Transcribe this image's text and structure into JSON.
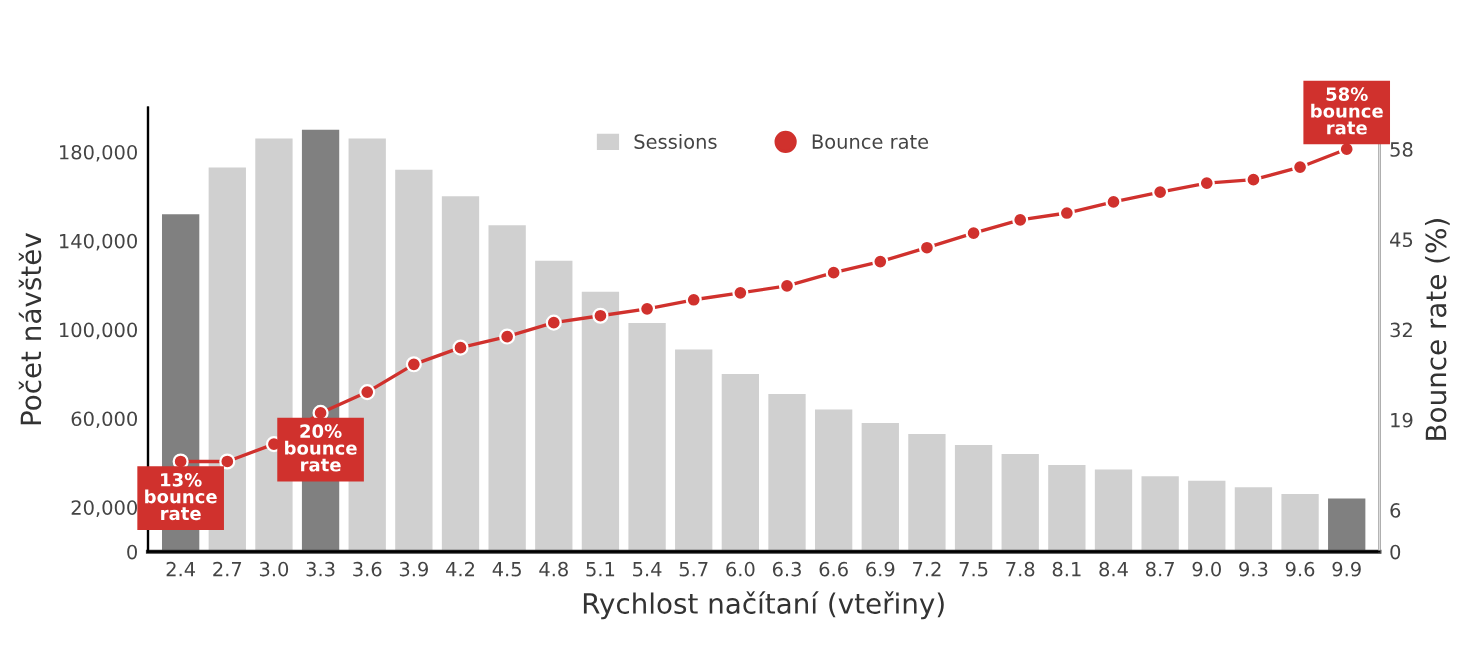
{
  "chart_data": {
    "type": "bar",
    "xlabel": "Rychlost načítaní (vteřiny)",
    "ylabel": "Počet návštěv",
    "y2label": "Bounce rate (%)",
    "categories": [
      "2.4",
      "2.7",
      "3.0",
      "3.3",
      "3.6",
      "3.9",
      "4.2",
      "4.5",
      "4.8",
      "5.1",
      "5.4",
      "5.7",
      "6.0",
      "6.3",
      "6.6",
      "6.9",
      "7.2",
      "7.5",
      "7.8",
      "8.1",
      "8.4",
      "8.7",
      "9.0",
      "9.3",
      "9.6",
      "9.9"
    ],
    "series": [
      {
        "name": "Sessions",
        "type": "bar",
        "color": "#d0d0d0",
        "colors": [
          "#808080",
          "#d0d0d0",
          "#d0d0d0",
          "#808080",
          "#d0d0d0",
          "#d0d0d0",
          "#d0d0d0",
          "#d0d0d0",
          "#d0d0d0",
          "#d0d0d0",
          "#d0d0d0",
          "#d0d0d0",
          "#d0d0d0",
          "#d0d0d0",
          "#d0d0d0",
          "#d0d0d0",
          "#d0d0d0",
          "#d0d0d0",
          "#d0d0d0",
          "#d0d0d0",
          "#d0d0d0",
          "#d0d0d0",
          "#d0d0d0",
          "#d0d0d0",
          "#d0d0d0",
          "#808080"
        ],
        "values": [
          152000,
          173000,
          186000,
          190000,
          186000,
          172000,
          160000,
          147000,
          131000,
          117000,
          103000,
          91000,
          80000,
          71000,
          64000,
          58000,
          53000,
          48000,
          44000,
          39000,
          37000,
          34000,
          32000,
          29000,
          26000,
          24000
        ]
      },
      {
        "name": "Bounce rate",
        "type": "line",
        "axis": "y2",
        "color": "#d0312d",
        "marker": "circle",
        "values": [
          13,
          13,
          15.5,
          20,
          23,
          27,
          29.4,
          31,
          33,
          34,
          35,
          36.3,
          37.3,
          38.3,
          40.2,
          41.8,
          43.8,
          45.9,
          47.8,
          48.8,
          50.4,
          51.8,
          53.1,
          53.6,
          55.4,
          58
        ]
      }
    ],
    "ylim": [
      0,
      200000
    ],
    "yticks": [
      0,
      {
        "value": 20000,
        "label": "20,000"
      },
      {
        "value": 60000,
        "label": "60,000"
      },
      {
        "value": 100000,
        "label": "100,000"
      },
      {
        "value": 140000,
        "label": "140,000"
      },
      {
        "value": 180000,
        "label": "180,000"
      }
    ],
    "y2lim": [
      0,
      64
    ],
    "y2ticks": [
      0,
      6,
      19,
      32,
      45,
      58
    ],
    "legend": "top",
    "grid": false,
    "annotations": [
      {
        "text": "13%\nbounce\nrate",
        "x": "2.4",
        "y": 40600
      },
      {
        "text": "20%\nbounce\nrate",
        "x": "3.3",
        "y": 62500
      },
      {
        "text": "58%\nbounce\nrate",
        "x": "9.9",
        "y": 181250
      }
    ]
  }
}
